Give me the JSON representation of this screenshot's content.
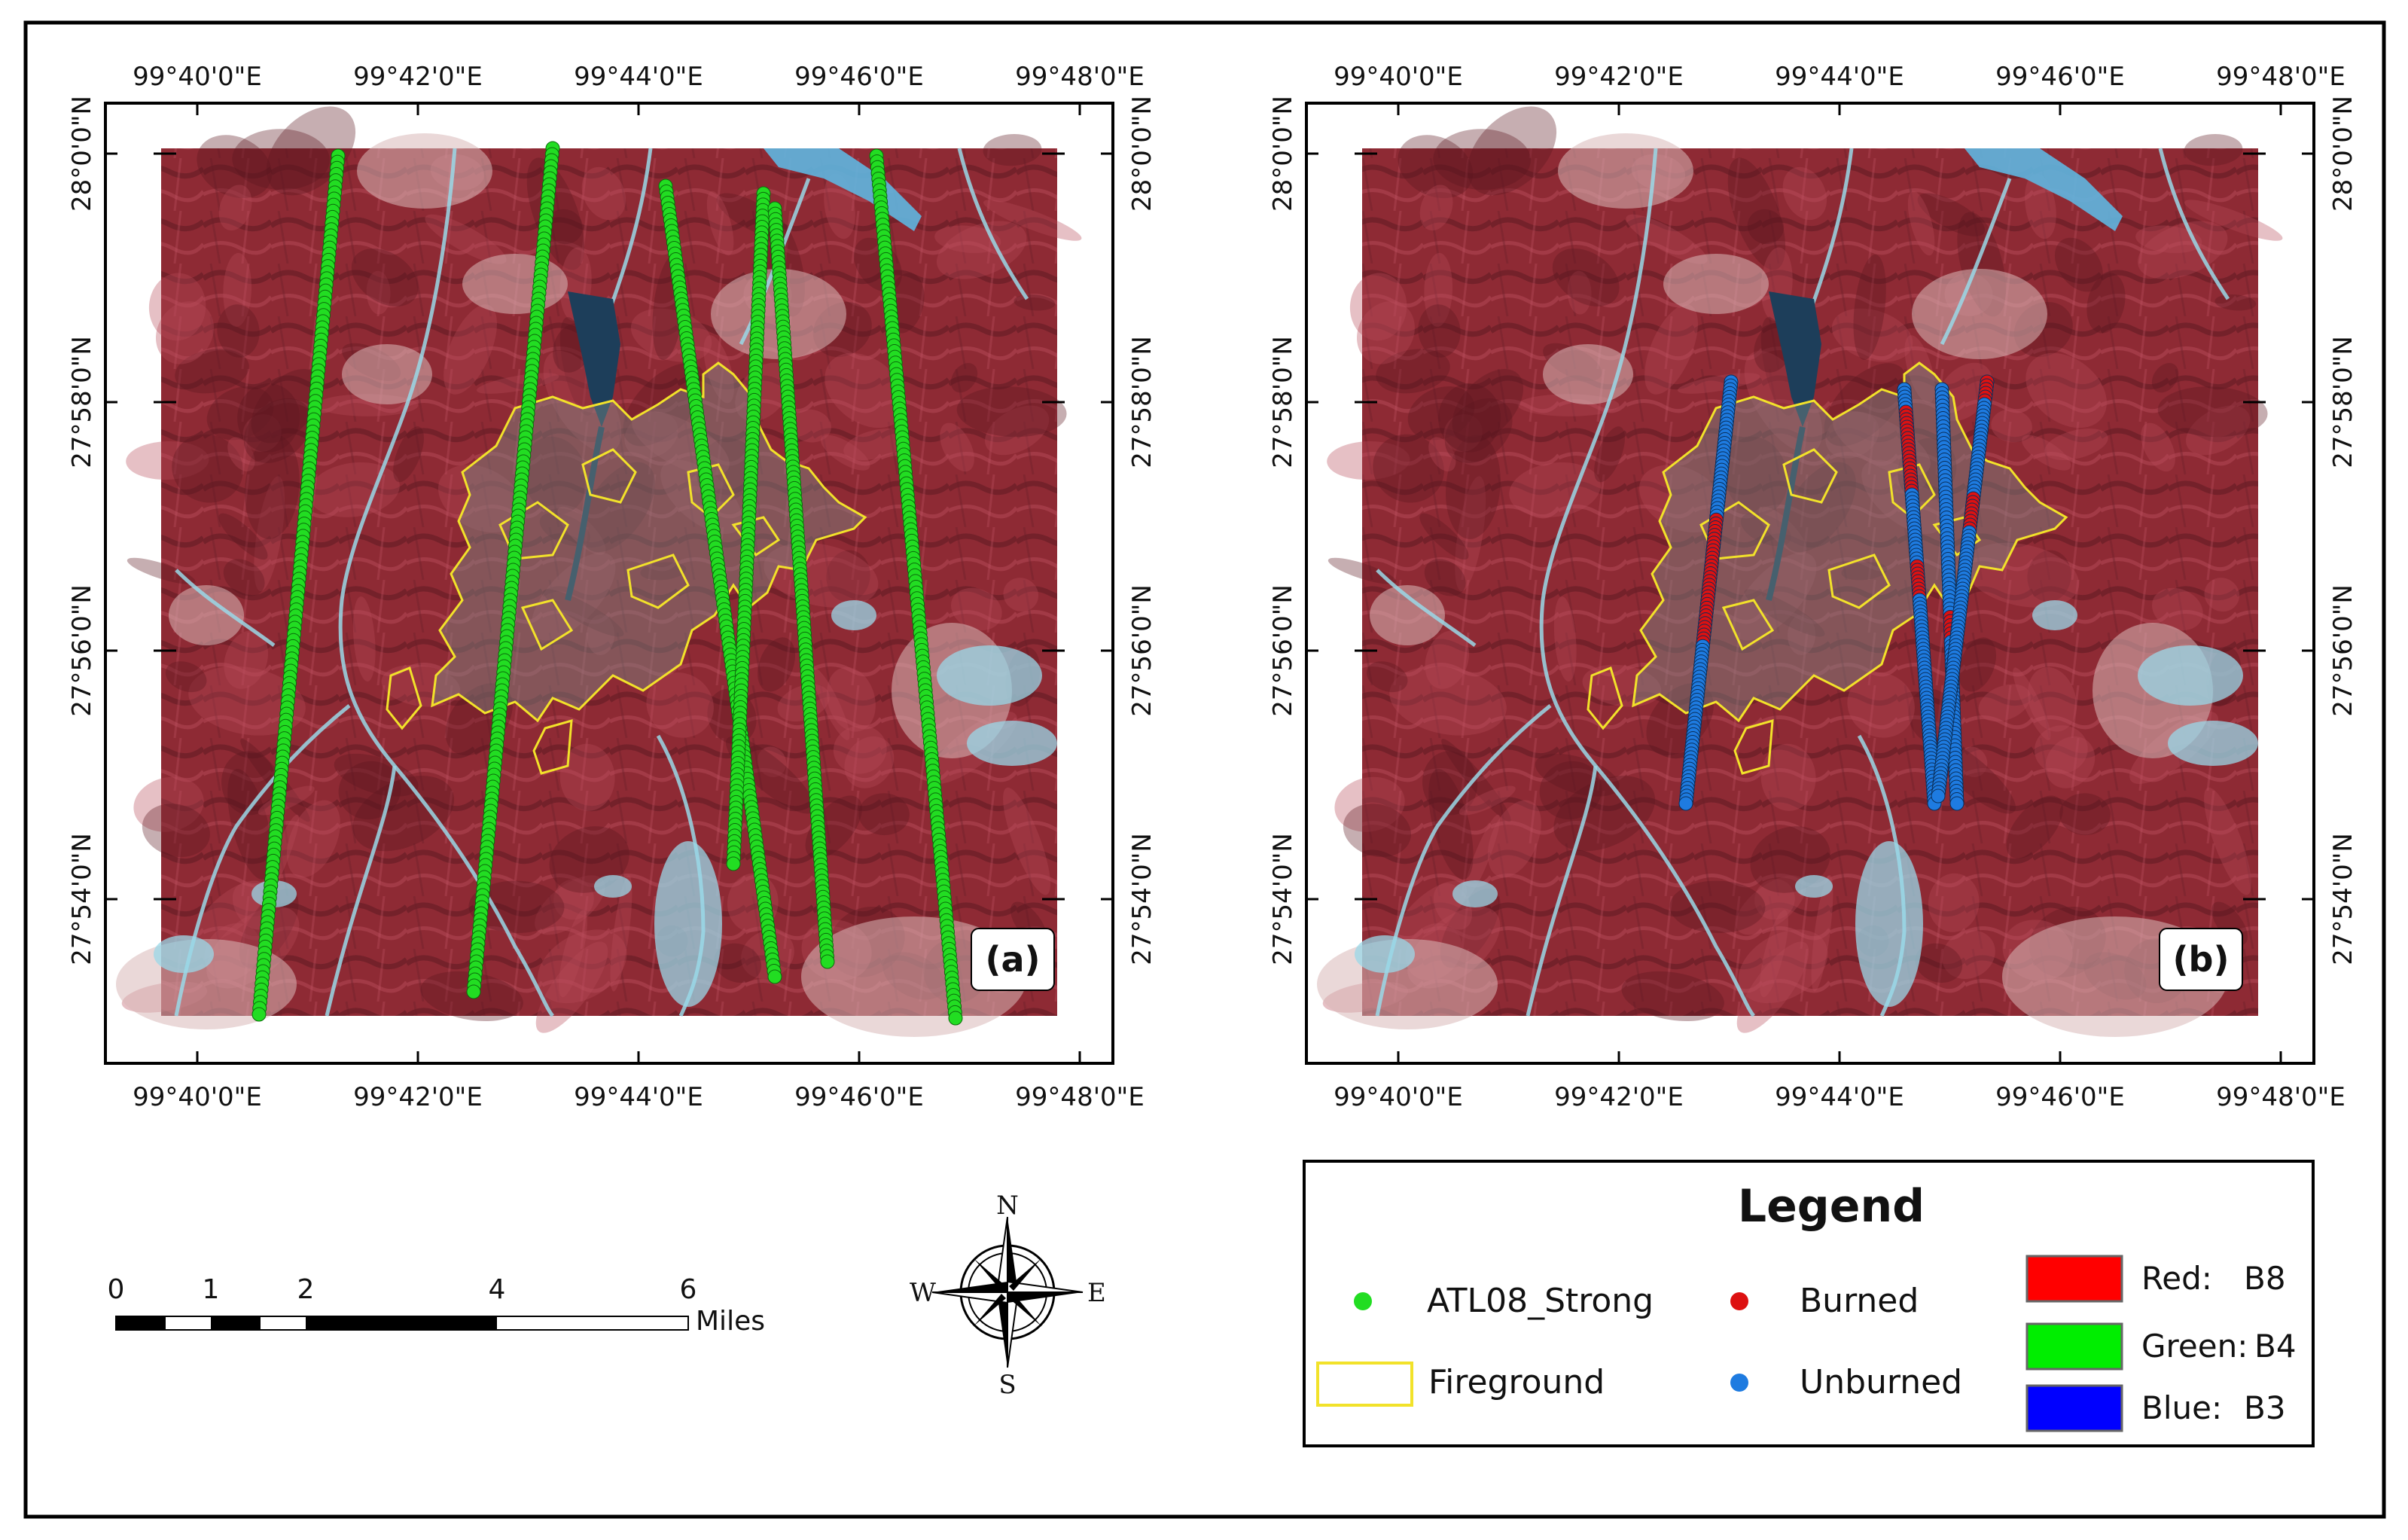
{
  "panels": [
    {
      "label": "(a)",
      "top_ticks": [
        "99°40'0\"E",
        "99°42'0\"E",
        "99°44'0\"E",
        "99°46'0\"E",
        "99°48'0\"E"
      ],
      "bottom_ticks": [
        "99°40'0\"E",
        "99°42'0\"E",
        "99°44'0\"E",
        "99°46'0\"E",
        "99°48'0\"E"
      ],
      "left_ticks": [
        "28°0'0\"N",
        "27°58'0\"N",
        "27°56'0\"N",
        "27°54'0\"N"
      ],
      "right_ticks": [
        "28°0'0\"N",
        "27°58'0\"N",
        "27°56'0\"N",
        "27°54'0\"N"
      ]
    },
    {
      "label": "(b)",
      "top_ticks": [
        "99°40'0\"E",
        "99°42'0\"E",
        "99°44'0\"E",
        "99°46'0\"E",
        "99°48'0\"E"
      ],
      "bottom_ticks": [
        "99°40'0\"E",
        "99°42'0\"E",
        "99°44'0\"E",
        "99°46'0\"E",
        "99°48'0\"E"
      ],
      "left_ticks": [
        "28°0'0\"N",
        "27°58'0\"N",
        "27°56'0\"N",
        "27°54'0\"N"
      ],
      "right_ticks": [
        "28°0'0\"N",
        "27°58'0\"N",
        "27°56'0\"N",
        "27°54'0\"N"
      ]
    }
  ],
  "scale_bar": {
    "labels": [
      "0",
      "1",
      "2",
      "4",
      "6"
    ],
    "unit": "Miles"
  },
  "north_arrow": {
    "n": "N",
    "s": "S",
    "e": "E",
    "w": "W"
  },
  "legend": {
    "title": "Legend",
    "items": {
      "atl08": "ATL08_Strong",
      "fireground": "Fireground",
      "burned": "Burned",
      "unburned": "Unburned"
    },
    "bands": [
      {
        "channel": "Red:",
        "band": "B8",
        "color": "#ff0000"
      },
      {
        "channel": "Green:",
        "band": "B4",
        "color": "#00ee00"
      },
      {
        "channel": "Blue:",
        "band": "B3",
        "color": "#0000ff"
      }
    ]
  },
  "colors": {
    "atl08_point": "#22dd22",
    "burned_point": "#dd1111",
    "unburned_point": "#1e7be0",
    "fireground_outline": "#f2e22a",
    "terrain_base": "#8e2a34",
    "river": "#9ad8e8",
    "reservoir": "#2a6aa8"
  }
}
